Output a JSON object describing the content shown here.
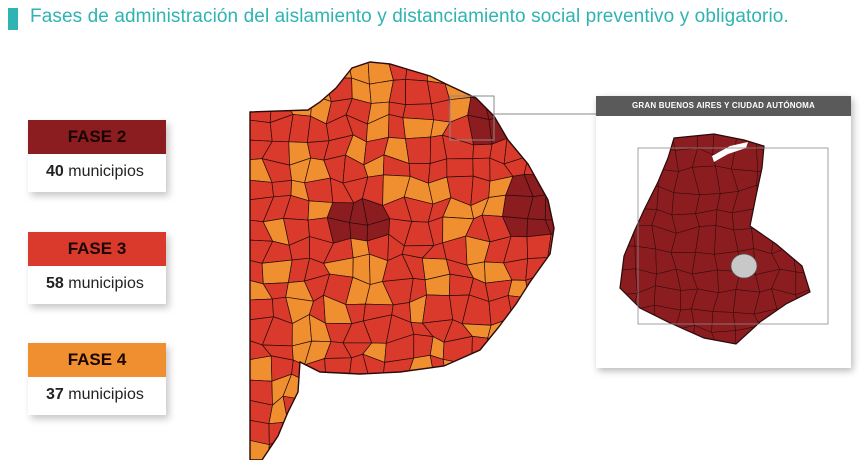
{
  "title": "Fases de administración del aislamiento y distanciamiento social preventivo y obligatorio.",
  "colors": {
    "accent": "#2fb3b3",
    "fase2": "#8b1c1f",
    "fase3": "#d93a2b",
    "fase4": "#ef8f2f",
    "border": "#2a0a0a",
    "inset_header_bg": "#5a5a5a"
  },
  "legend": [
    {
      "phase": "FASE 2",
      "count": "40",
      "unit": "municipios"
    },
    {
      "phase": "FASE 3",
      "count": "58",
      "unit": "municipios"
    },
    {
      "phase": "FASE 4",
      "count": "37",
      "unit": "municipios"
    }
  ],
  "inset": {
    "title": "GRAN BUENOS AIRES Y CIUDAD AUTÓNOMA"
  }
}
